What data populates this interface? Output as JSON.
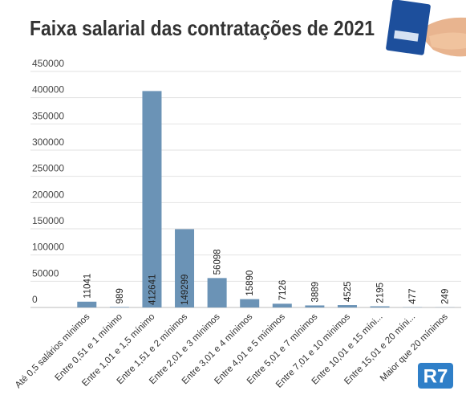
{
  "chart_data": {
    "type": "bar",
    "title": "Faixa salarial das contratações de 2021",
    "categories": [
      "Até 0,5 salários mínimos",
      "Entre 0,51 e 1 mínimo",
      "Entre 1,01 e 1,5 mínimo",
      "Entre 1,51 e 2 mínimos",
      "Entre 2,01 e 3 mínimos",
      "Entre 3,01 e 4 mínimos",
      "Entre 4,01 e 5 mínimos",
      "Entre 5,01 e 7 mínimos",
      "Entre 7,01 e 10 mínimos",
      "Entre 10,01 e 15 míni...",
      "Entre 15,01 e 20 míni...",
      "Maior que 20 mínimos"
    ],
    "values": [
      11041,
      989,
      412641,
      149299,
      56098,
      15890,
      7126,
      3889,
      4525,
      2195,
      477,
      249
    ],
    "color": "#6b93b6",
    "ylim": [
      0,
      450000
    ],
    "yticks": [
      0,
      50000,
      100000,
      150000,
      200000,
      250000,
      300000,
      350000,
      400000,
      450000
    ],
    "grid": true,
    "logo": "R7"
  }
}
